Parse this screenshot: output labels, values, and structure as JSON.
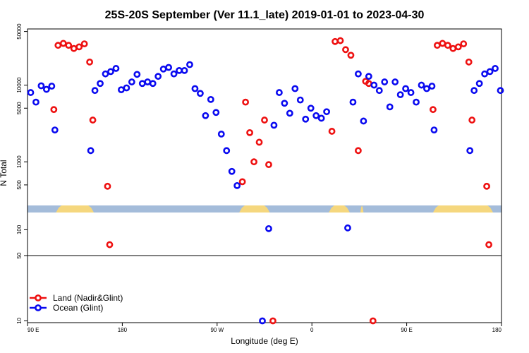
{
  "chart_data": {
    "type": "scatter",
    "title": "25S-20S September (Ver 11.1_late)   2019-01-01 to 2023-04-30",
    "xlabel": "Longitude (deg E)",
    "ylabel": "N Total",
    "x_axis": {
      "range": [
        0,
        450
      ],
      "ticks": [
        {
          "value": 0,
          "label": "90 E"
        },
        {
          "value": 90,
          "label": "180"
        },
        {
          "value": 180,
          "label": "90 W"
        },
        {
          "value": 270,
          "label": "0"
        },
        {
          "value": 360,
          "label": "90 E"
        },
        {
          "value": 450,
          "label": "180"
        }
      ]
    },
    "y_axis": {
      "scale": "piecewise-log",
      "segments": [
        {
          "range": [
            300,
            60000
          ],
          "ticks": [
            {
              "value": 500,
              "label": "500"
            },
            {
              "value": 1000,
              "label": "1000"
            },
            {
              "value": 5000,
              "label": "5000"
            },
            {
              "value": 10000,
              "label": "10000"
            },
            {
              "value": 50000,
              "label": "50000"
            }
          ]
        },
        {
          "range": [
            50,
            150
          ],
          "ticks": [
            {
              "value": 50,
              "label": "50"
            },
            {
              "value": 100,
              "label": "100"
            }
          ]
        },
        {
          "range": [
            7,
            50
          ],
          "ticks": [
            {
              "value": 10,
              "label": "10"
            }
          ]
        }
      ]
    },
    "surface_strip": {
      "ocean_color": "#a4bcda",
      "land_color": "#f5d77e",
      "land_ranges": [
        [
          27,
          63
        ],
        [
          201,
          230
        ],
        [
          286,
          306
        ],
        [
          316,
          319
        ],
        [
          385,
          442
        ]
      ]
    },
    "series": [
      {
        "name": "Land (Nadir&Glint)",
        "color": "#ee1111",
        "points": [
          [
            25,
            4800
          ],
          [
            29,
            33000
          ],
          [
            34,
            35000
          ],
          [
            39,
            33000
          ],
          [
            44,
            30000
          ],
          [
            49,
            31500
          ],
          [
            54,
            34500
          ],
          [
            59,
            20000
          ],
          [
            62,
            3500
          ],
          [
            76,
            480
          ],
          [
            78,
            67
          ],
          [
            204,
            550
          ],
          [
            207,
            6000
          ],
          [
            211,
            2400
          ],
          [
            215,
            1000
          ],
          [
            220,
            1800
          ],
          [
            225,
            3500
          ],
          [
            229,
            920
          ],
          [
            233,
            10
          ],
          [
            289,
            2500
          ],
          [
            292,
            37000
          ],
          [
            297,
            38000
          ],
          [
            302,
            29000
          ],
          [
            307,
            24500
          ],
          [
            314,
            1400
          ],
          [
            321,
            11200
          ],
          [
            324,
            10500
          ],
          [
            328,
            10
          ],
          [
            385,
            4800
          ],
          [
            389,
            33000
          ],
          [
            394,
            35000
          ],
          [
            399,
            33000
          ],
          [
            404,
            30000
          ],
          [
            409,
            31500
          ],
          [
            414,
            34500
          ],
          [
            419,
            20000
          ],
          [
            422,
            3500
          ],
          [
            436,
            480
          ],
          [
            438,
            67
          ]
        ]
      },
      {
        "name": "Ocean (Glint)",
        "color": "#0a0af0",
        "points": [
          [
            3,
            8000
          ],
          [
            8,
            6000
          ],
          [
            13,
            9800
          ],
          [
            18,
            8800
          ],
          [
            23,
            9700
          ],
          [
            26,
            2600
          ],
          [
            60,
            1400
          ],
          [
            64,
            8500
          ],
          [
            69,
            10500
          ],
          [
            74,
            14000
          ],
          [
            79,
            15000
          ],
          [
            84,
            16500
          ],
          [
            89,
            8700
          ],
          [
            94,
            9200
          ],
          [
            99,
            11000
          ],
          [
            104,
            13800
          ],
          [
            109,
            10500
          ],
          [
            114,
            11000
          ],
          [
            119,
            10500
          ],
          [
            124,
            13000
          ],
          [
            129,
            16200
          ],
          [
            134,
            17000
          ],
          [
            139,
            14000
          ],
          [
            144,
            15500
          ],
          [
            149,
            15500
          ],
          [
            154,
            18500
          ],
          [
            159,
            9000
          ],
          [
            164,
            7800
          ],
          [
            169,
            4000
          ],
          [
            174,
            6500
          ],
          [
            179,
            4400
          ],
          [
            184,
            2300
          ],
          [
            189,
            1400
          ],
          [
            194,
            750
          ],
          [
            199,
            490
          ],
          [
            229,
            103
          ],
          [
            223,
            10
          ],
          [
            234,
            3000
          ],
          [
            239,
            8000
          ],
          [
            244,
            5800
          ],
          [
            249,
            4300
          ],
          [
            254,
            9000
          ],
          [
            259,
            6400
          ],
          [
            264,
            3600
          ],
          [
            269,
            5000
          ],
          [
            274,
            4000
          ],
          [
            279,
            3700
          ],
          [
            284,
            4500
          ],
          [
            304,
            105
          ],
          [
            309,
            6000
          ],
          [
            314,
            14000
          ],
          [
            319,
            3400
          ],
          [
            324,
            13000
          ],
          [
            329,
            10000
          ],
          [
            334,
            8500
          ],
          [
            339,
            11000
          ],
          [
            344,
            5200
          ],
          [
            349,
            11000
          ],
          [
            354,
            7500
          ],
          [
            359,
            9000
          ],
          [
            364,
            8000
          ],
          [
            369,
            6000
          ],
          [
            374,
            10000
          ],
          [
            379,
            9000
          ],
          [
            384,
            9700
          ],
          [
            386,
            2600
          ],
          [
            420,
            1400
          ],
          [
            424,
            8500
          ],
          [
            429,
            10500
          ],
          [
            434,
            14000
          ],
          [
            439,
            15000
          ],
          [
            444,
            16500
          ],
          [
            449,
            8500
          ]
        ]
      }
    ]
  }
}
